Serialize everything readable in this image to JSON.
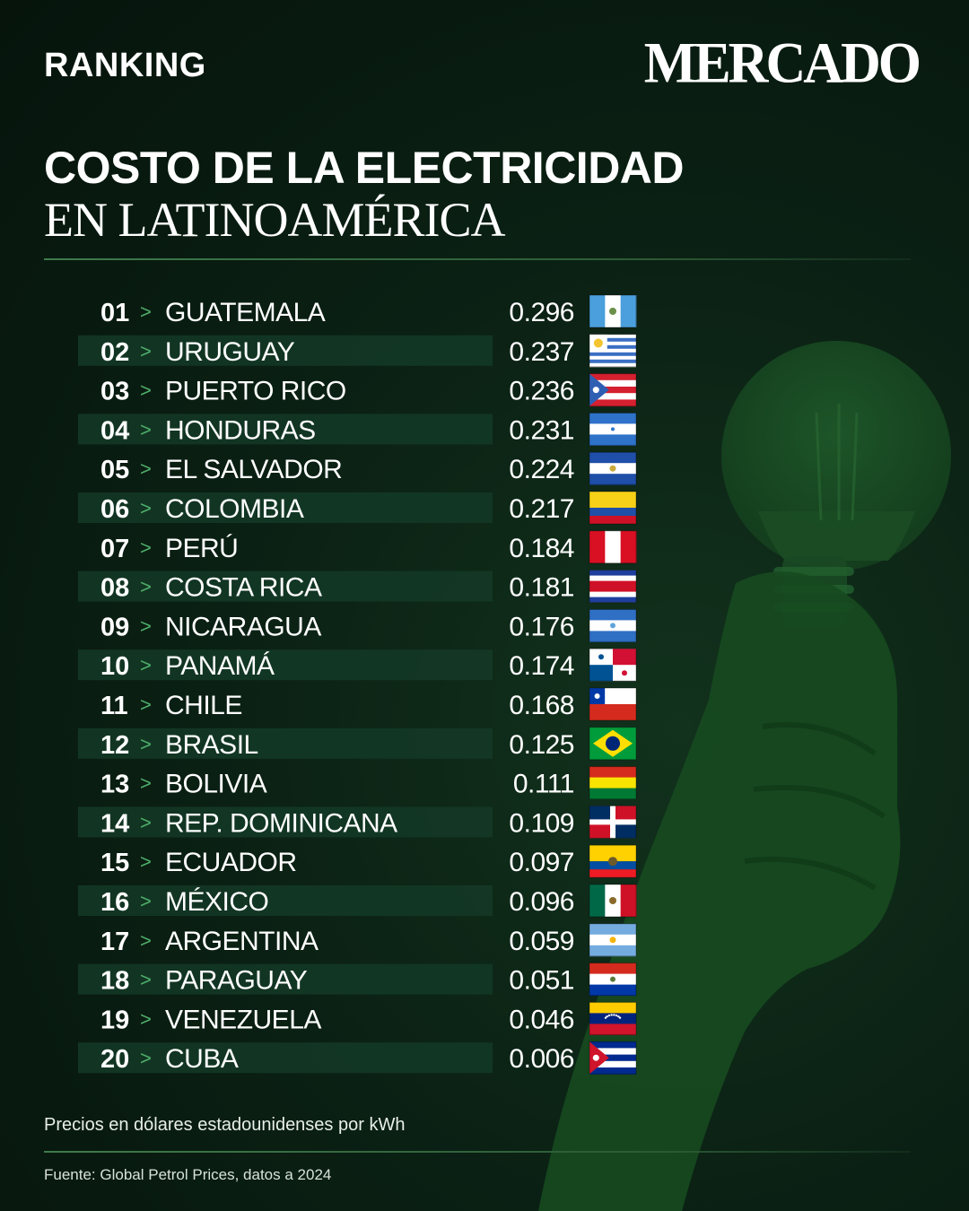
{
  "header": {
    "kicker": "RANKING",
    "brand": "MERCADO"
  },
  "title": {
    "main": "COSTO DE LA ELECTRICIDAD",
    "sub": "EN LATINOAMÉRICA"
  },
  "colors": {
    "background": "#0b2114",
    "row_band": "#143a27",
    "arrow": "#4fae6a",
    "divider": "#3f7a4c"
  },
  "chart_data": {
    "type": "table",
    "separator": ">",
    "rows": [
      {
        "rank": "01",
        "country": "GUATEMALA",
        "value": "0.296",
        "flag": "guatemala-flag"
      },
      {
        "rank": "02",
        "country": "URUGUAY",
        "value": "0.237",
        "flag": "uruguay-flag"
      },
      {
        "rank": "03",
        "country": "PUERTO RICO",
        "value": "0.236",
        "flag": "puerto-rico-flag"
      },
      {
        "rank": "04",
        "country": "HONDURAS",
        "value": "0.231",
        "flag": "honduras-flag"
      },
      {
        "rank": "05",
        "country": "EL SALVADOR",
        "value": "0.224",
        "flag": "el-salvador-flag"
      },
      {
        "rank": "06",
        "country": "COLOMBIA",
        "value": "0.217",
        "flag": "colombia-flag"
      },
      {
        "rank": "07",
        "country": "PERÚ",
        "value": "0.184",
        "flag": "peru-flag"
      },
      {
        "rank": "08",
        "country": "COSTA RICA",
        "value": "0.181",
        "flag": "costa-rica-flag"
      },
      {
        "rank": "09",
        "country": "NICARAGUA",
        "value": "0.176",
        "flag": "nicaragua-flag"
      },
      {
        "rank": "10",
        "country": "PANAMÁ",
        "value": "0.174",
        "flag": "panama-flag"
      },
      {
        "rank": "11",
        "country": "CHILE",
        "value": "0.168",
        "flag": "chile-flag"
      },
      {
        "rank": "12",
        "country": "BRASIL",
        "value": "0.125",
        "flag": "brazil-flag"
      },
      {
        "rank": "13",
        "country": "BOLIVIA",
        "value": "0.111",
        "flag": "bolivia-flag"
      },
      {
        "rank": "14",
        "country": "REP. DOMINICANA",
        "value": "0.109",
        "flag": "dominican-republic-flag"
      },
      {
        "rank": "15",
        "country": "ECUADOR",
        "value": "0.097",
        "flag": "ecuador-flag"
      },
      {
        "rank": "16",
        "country": "MÉXICO",
        "value": "0.096",
        "flag": "mexico-flag"
      },
      {
        "rank": "17",
        "country": "ARGENTINA",
        "value": "0.059",
        "flag": "argentina-flag"
      },
      {
        "rank": "18",
        "country": "PARAGUAY",
        "value": "0.051",
        "flag": "paraguay-flag"
      },
      {
        "rank": "19",
        "country": "VENEZUELA",
        "value": "0.046",
        "flag": "venezuela-flag"
      },
      {
        "rank": "20",
        "country": "CUBA",
        "value": "0.006",
        "flag": "cuba-flag"
      }
    ]
  },
  "footer": {
    "note": "Precios en dólares estadounidenses por kWh",
    "source": "Fuente: Global Petrol Prices, datos a 2024"
  }
}
